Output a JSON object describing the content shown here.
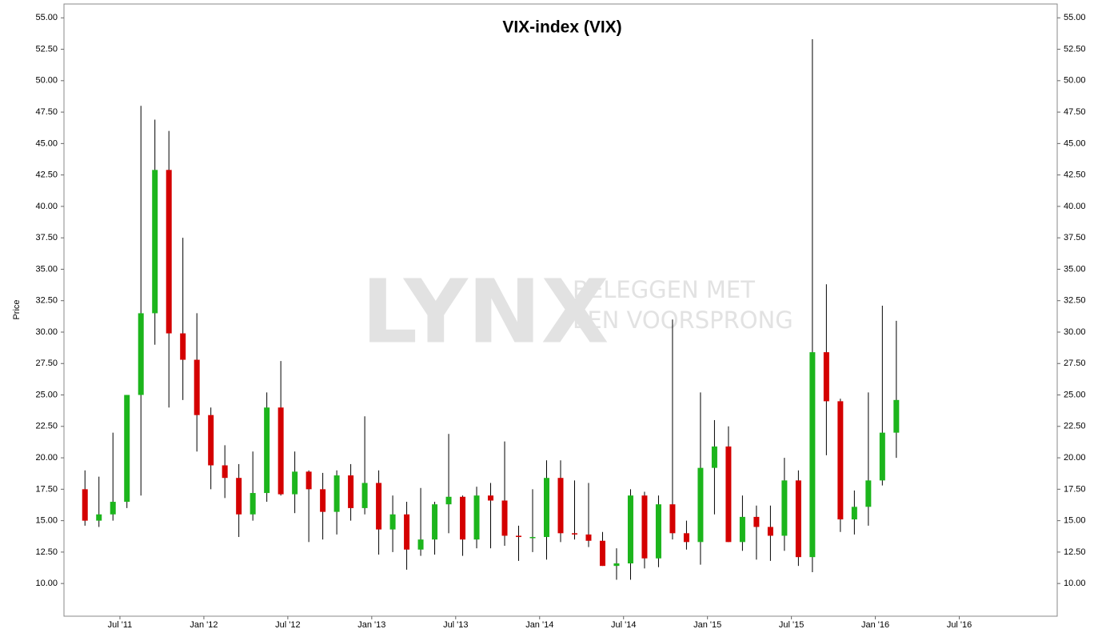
{
  "chart_data": {
    "type": "candlestick",
    "title": "VIX-index (VIX)",
    "y_label": "Price",
    "watermark": [
      "LYNX",
      "BELEGGEN MET",
      "EEN VOORSPRONG"
    ],
    "up_color": "#1cb51c",
    "down_color": "#d40000",
    "x": [
      "2011-04",
      "2011-05",
      "2011-06",
      "2011-07",
      "2011-08",
      "2011-09",
      "2011-10",
      "2011-11",
      "2011-12",
      "2012-01",
      "2012-02",
      "2012-03",
      "2012-04",
      "2012-05",
      "2012-06",
      "2012-07",
      "2012-08",
      "2012-09",
      "2012-10",
      "2012-11",
      "2012-12",
      "2013-01",
      "2013-02",
      "2013-03",
      "2013-04",
      "2013-05",
      "2013-06",
      "2013-07",
      "2013-08",
      "2013-09",
      "2013-10",
      "2013-11",
      "2013-12",
      "2014-01",
      "2014-02",
      "2014-03",
      "2014-04",
      "2014-05",
      "2014-06",
      "2014-07",
      "2014-08",
      "2014-09",
      "2014-10",
      "2014-11",
      "2014-12",
      "2015-01",
      "2015-02",
      "2015-03",
      "2015-04",
      "2015-05",
      "2015-06",
      "2015-07",
      "2015-08",
      "2015-09",
      "2015-10",
      "2015-11",
      "2015-12",
      "2016-01",
      "2016-02"
    ],
    "open": [
      17.5,
      15,
      15.5,
      16.5,
      25,
      31.5,
      42.9,
      29.9,
      27.8,
      23.4,
      19.4,
      18.4,
      15.5,
      17.2,
      24,
      17.1,
      18.9,
      17.5,
      15.7,
      18.6,
      16,
      18,
      14.3,
      15.5,
      12.7,
      13.5,
      16.3,
      16.9,
      13.5,
      17,
      16.6,
      13.8,
      13.7,
      13.7,
      18.4,
      14,
      13.9,
      13.4,
      11.4,
      11.6,
      17,
      12,
      16.3,
      14,
      13.3,
      19.2,
      20.9,
      13.3,
      15.3,
      14.5,
      13.8,
      18.2,
      12.1,
      28.4,
      24.5,
      15.1,
      16.1,
      18.2,
      22
    ],
    "high": [
      19,
      18.5,
      22,
      25,
      48,
      46.9,
      46,
      37.5,
      31.5,
      24,
      21,
      19.5,
      20.5,
      25.2,
      27.7,
      20.5,
      19,
      18.8,
      19,
      19.5,
      23.3,
      19,
      17,
      16.5,
      17.6,
      16.5,
      21.9,
      17,
      17.7,
      18,
      21.3,
      14.6,
      17.5,
      19.8,
      19.8,
      18.2,
      18,
      14.1,
      12.8,
      17.5,
      17.3,
      17,
      31,
      15,
      25.2,
      23,
      22.5,
      17,
      16.2,
      16.2,
      20,
      19,
      53.3,
      33.8,
      24.7,
      17.4,
      25.2,
      32.1,
      30.9
    ],
    "low": [
      14.6,
      14.5,
      15,
      16,
      17,
      29,
      24,
      24.6,
      20.5,
      17.5,
      16.8,
      13.7,
      15,
      16.5,
      17,
      15.6,
      13.3,
      13.5,
      13.9,
      15,
      15.5,
      12.3,
      12.5,
      11.1,
      12.2,
      12.3,
      14,
      12.2,
      12.8,
      12.8,
      13,
      11.8,
      12.5,
      11.9,
      13.3,
      13.5,
      12.9,
      11.4,
      10.3,
      10.3,
      11.2,
      11.3,
      13.5,
      12.7,
      11.5,
      15.5,
      13.3,
      12.6,
      11.9,
      11.8,
      12.6,
      11.4,
      10.9,
      20.2,
      14.1,
      13.9,
      14.6,
      17.8,
      20
    ],
    "close": [
      15,
      15.5,
      16.5,
      25,
      31.5,
      42.9,
      29.9,
      27.8,
      23.4,
      19.4,
      18.4,
      15.5,
      17.2,
      24,
      17.1,
      18.9,
      17.5,
      15.7,
      18.6,
      16,
      18,
      14.3,
      15.5,
      12.7,
      13.5,
      16.3,
      16.9,
      13.5,
      17,
      16.6,
      13.8,
      13.7,
      13.7,
      18.4,
      14,
      13.9,
      13.4,
      11.4,
      11.6,
      17,
      12,
      16.3,
      14,
      13.3,
      19.2,
      20.9,
      13.3,
      15.3,
      14.5,
      13.8,
      18.2,
      12.1,
      28.4,
      24.5,
      15.1,
      16.1,
      18.2,
      22,
      24.6
    ],
    "xlim": [
      "2011-03",
      "2017-02"
    ],
    "xticks": [
      {
        "value": "2011-07",
        "label": "Jul '11"
      },
      {
        "value": "2012-01",
        "label": "Jan '12"
      },
      {
        "value": "2012-07",
        "label": "Jul '12"
      },
      {
        "value": "2013-01",
        "label": "Jan '13"
      },
      {
        "value": "2013-07",
        "label": "Jul '13"
      },
      {
        "value": "2014-01",
        "label": "Jan '14"
      },
      {
        "value": "2014-07",
        "label": "Jul '14"
      },
      {
        "value": "2015-01",
        "label": "Jan '15"
      },
      {
        "value": "2015-07",
        "label": "Jul '15"
      },
      {
        "value": "2016-01",
        "label": "Jan '16"
      },
      {
        "value": "2016-07",
        "label": "Jul '16"
      }
    ],
    "ylim": [
      7.4,
      56.1
    ],
    "yticks": [
      {
        "value": 10,
        "label": "10.00"
      },
      {
        "value": 12.5,
        "label": "12.50"
      },
      {
        "value": 15,
        "label": "15.00"
      },
      {
        "value": 17.5,
        "label": "17.50"
      },
      {
        "value": 20,
        "label": "20.00"
      },
      {
        "value": 22.5,
        "label": "22.50"
      },
      {
        "value": 25,
        "label": "25.00"
      },
      {
        "value": 27.5,
        "label": "27.50"
      },
      {
        "value": 30,
        "label": "30.00"
      },
      {
        "value": 32.5,
        "label": "32.50"
      },
      {
        "value": 35,
        "label": "35.00"
      },
      {
        "value": 37.5,
        "label": "37.50"
      },
      {
        "value": 40,
        "label": "40.00"
      },
      {
        "value": 42.5,
        "label": "42.50"
      },
      {
        "value": 45,
        "label": "45.00"
      },
      {
        "value": 47.5,
        "label": "47.50"
      },
      {
        "value": 50,
        "label": "50.00"
      },
      {
        "value": 52.5,
        "label": "52.50"
      },
      {
        "value": 55,
        "label": "55.00"
      }
    ]
  }
}
